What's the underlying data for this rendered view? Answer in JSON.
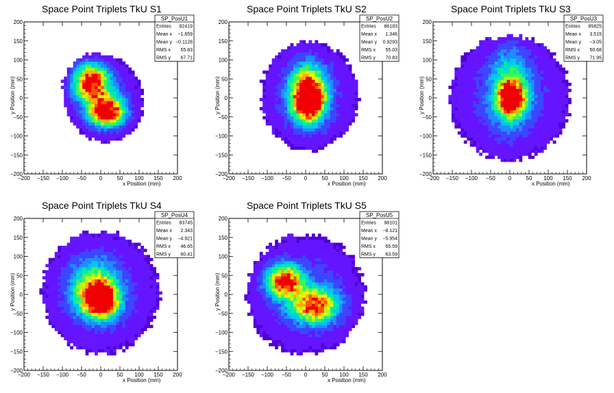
{
  "chart_data": [
    {
      "type": "heatmap",
      "title": "Space Point Triplets TkU S1",
      "xlabel": "x Position (mm)",
      "ylabel": "y Position (mm)",
      "xlim": [
        -200,
        200
      ],
      "ylim": [
        -200,
        200
      ],
      "xticks": [
        -200,
        -150,
        -100,
        -50,
        0,
        50,
        100,
        150,
        200
      ],
      "yticks": [
        -200,
        -150,
        -100,
        -50,
        0,
        50,
        100,
        150,
        200
      ],
      "stats": {
        "name": "SP_PosU1",
        "rows": [
          {
            "label": "Entries",
            "value": "82419"
          },
          {
            "label": "Mean x",
            "value": "−1.659"
          },
          {
            "label": "Mean y",
            "value": "−0.1128"
          },
          {
            "label": "RMS x",
            "value": "55.83"
          },
          {
            "label": "RMS y",
            "value": "67.71"
          }
        ]
      },
      "shape": {
        "rx": 100,
        "ry": 118,
        "cx": 5,
        "cy": 0,
        "rot": 25
      },
      "blobs": [
        {
          "x": -25,
          "y": 40,
          "sx": 30,
          "sy": 32,
          "a": 0.9
        },
        {
          "x": 15,
          "y": -35,
          "sx": 30,
          "sy": 25,
          "a": 1.0
        }
      ]
    },
    {
      "type": "heatmap",
      "title": "Space Point Triplets TkU S2",
      "xlabel": "x Position (mm)",
      "ylabel": "y Position (mm)",
      "xlim": [
        -200,
        200
      ],
      "ylim": [
        -200,
        200
      ],
      "xticks": [
        -200,
        -150,
        -100,
        -50,
        0,
        50,
        100,
        150,
        200
      ],
      "yticks": [
        -200,
        -150,
        -100,
        -50,
        0,
        50,
        100,
        150,
        200
      ],
      "stats": {
        "name": "SP_PosU2",
        "rows": [
          {
            "label": "Entries",
            "value": "86183"
          },
          {
            "label": "Mean x",
            "value": "1.346"
          },
          {
            "label": "Mean y",
            "value": "0.9293"
          },
          {
            "label": "RMS x",
            "value": "55.03"
          },
          {
            "label": "RMS y",
            "value": "70.83"
          }
        ]
      },
      "shape": {
        "rx": 125,
        "ry": 140,
        "cx": 10,
        "cy": 5,
        "rot": 0
      },
      "blobs": [
        {
          "x": 5,
          "y": 15,
          "sx": 30,
          "sy": 45,
          "a": 0.9
        },
        {
          "x": 10,
          "y": -15,
          "sx": 25,
          "sy": 30,
          "a": 0.6
        }
      ]
    },
    {
      "type": "heatmap",
      "title": "Space Point Triplets TkU S3",
      "xlabel": "x Position (mm)",
      "ylabel": "y Position (mm)",
      "xlim": [
        -200,
        200
      ],
      "ylim": [
        -200,
        200
      ],
      "xticks": [
        -200,
        -150,
        -100,
        -50,
        0,
        50,
        100,
        150,
        200
      ],
      "yticks": [
        -200,
        -150,
        -100,
        -50,
        0,
        50,
        100,
        150,
        200
      ],
      "stats": {
        "name": "SP_PosU3",
        "rows": [
          {
            "label": "Entries",
            "value": "85825"
          },
          {
            "label": "Mean x",
            "value": "3.515"
          },
          {
            "label": "Mean y",
            "value": "−3.05"
          },
          {
            "label": "RMS x",
            "value": "50.68"
          },
          {
            "label": "RMS y",
            "value": "71.95"
          }
        ]
      },
      "shape": {
        "rx": 155,
        "ry": 160,
        "cx": 0,
        "cy": 0,
        "rot": 0
      },
      "blobs": [
        {
          "x": 5,
          "y": 0,
          "sx": 22,
          "sy": 28,
          "a": 1.0
        },
        {
          "x": 0,
          "y": 30,
          "sx": 35,
          "sy": 70,
          "a": 0.35
        }
      ]
    },
    {
      "type": "heatmap",
      "title": "Space Point Triplets TkU S4",
      "xlabel": "x Position (mm)",
      "ylabel": "y Position (mm)",
      "xlim": [
        -200,
        200
      ],
      "ylim": [
        -200,
        200
      ],
      "xticks": [
        -200,
        -150,
        -100,
        -50,
        0,
        50,
        100,
        150,
        200
      ],
      "yticks": [
        -200,
        -150,
        -100,
        -50,
        0,
        50,
        100,
        150,
        200
      ],
      "stats": {
        "name": "SP_PosU4",
        "rows": [
          {
            "label": "Entries",
            "value": "83745"
          },
          {
            "label": "Mean x",
            "value": "2.343"
          },
          {
            "label": "Mean y",
            "value": "−4.921"
          },
          {
            "label": "RMS x",
            "value": "46.65"
          },
          {
            "label": "RMS y",
            "value": "60.41"
          }
        ]
      },
      "shape": {
        "rx": 150,
        "ry": 158,
        "cx": 0,
        "cy": 5,
        "rot": 0
      },
      "blobs": [
        {
          "x": 0,
          "y": -15,
          "sx": 30,
          "sy": 30,
          "a": 1.0
        },
        {
          "x": -20,
          "y": 20,
          "sx": 40,
          "sy": 45,
          "a": 0.45
        }
      ]
    },
    {
      "type": "heatmap",
      "title": "Space Point Triplets TkU S5",
      "xlabel": "x Position (mm)",
      "ylabel": "y Position (mm)",
      "xlim": [
        -200,
        200
      ],
      "ylim": [
        -200,
        200
      ],
      "xticks": [
        -200,
        -150,
        -100,
        -50,
        0,
        50,
        100,
        150,
        200
      ],
      "yticks": [
        -200,
        -150,
        -100,
        -50,
        0,
        50,
        100,
        150,
        200
      ],
      "stats": {
        "name": "SP_PosU5",
        "rows": [
          {
            "label": "Entries",
            "value": "98101"
          },
          {
            "label": "Mean x",
            "value": "−8.121"
          },
          {
            "label": "Mean y",
            "value": "−5.954"
          },
          {
            "label": "RMS x",
            "value": "65.59"
          },
          {
            "label": "RMS y",
            "value": "63.59"
          }
        ]
      },
      "shape": {
        "rx": 150,
        "ry": 155,
        "cx": 0,
        "cy": 0,
        "rot": 0
      },
      "blobs": [
        {
          "x": -55,
          "y": 35,
          "sx": 30,
          "sy": 28,
          "a": 0.9
        },
        {
          "x": 25,
          "y": -30,
          "sx": 40,
          "sy": 30,
          "a": 0.75
        }
      ]
    }
  ]
}
